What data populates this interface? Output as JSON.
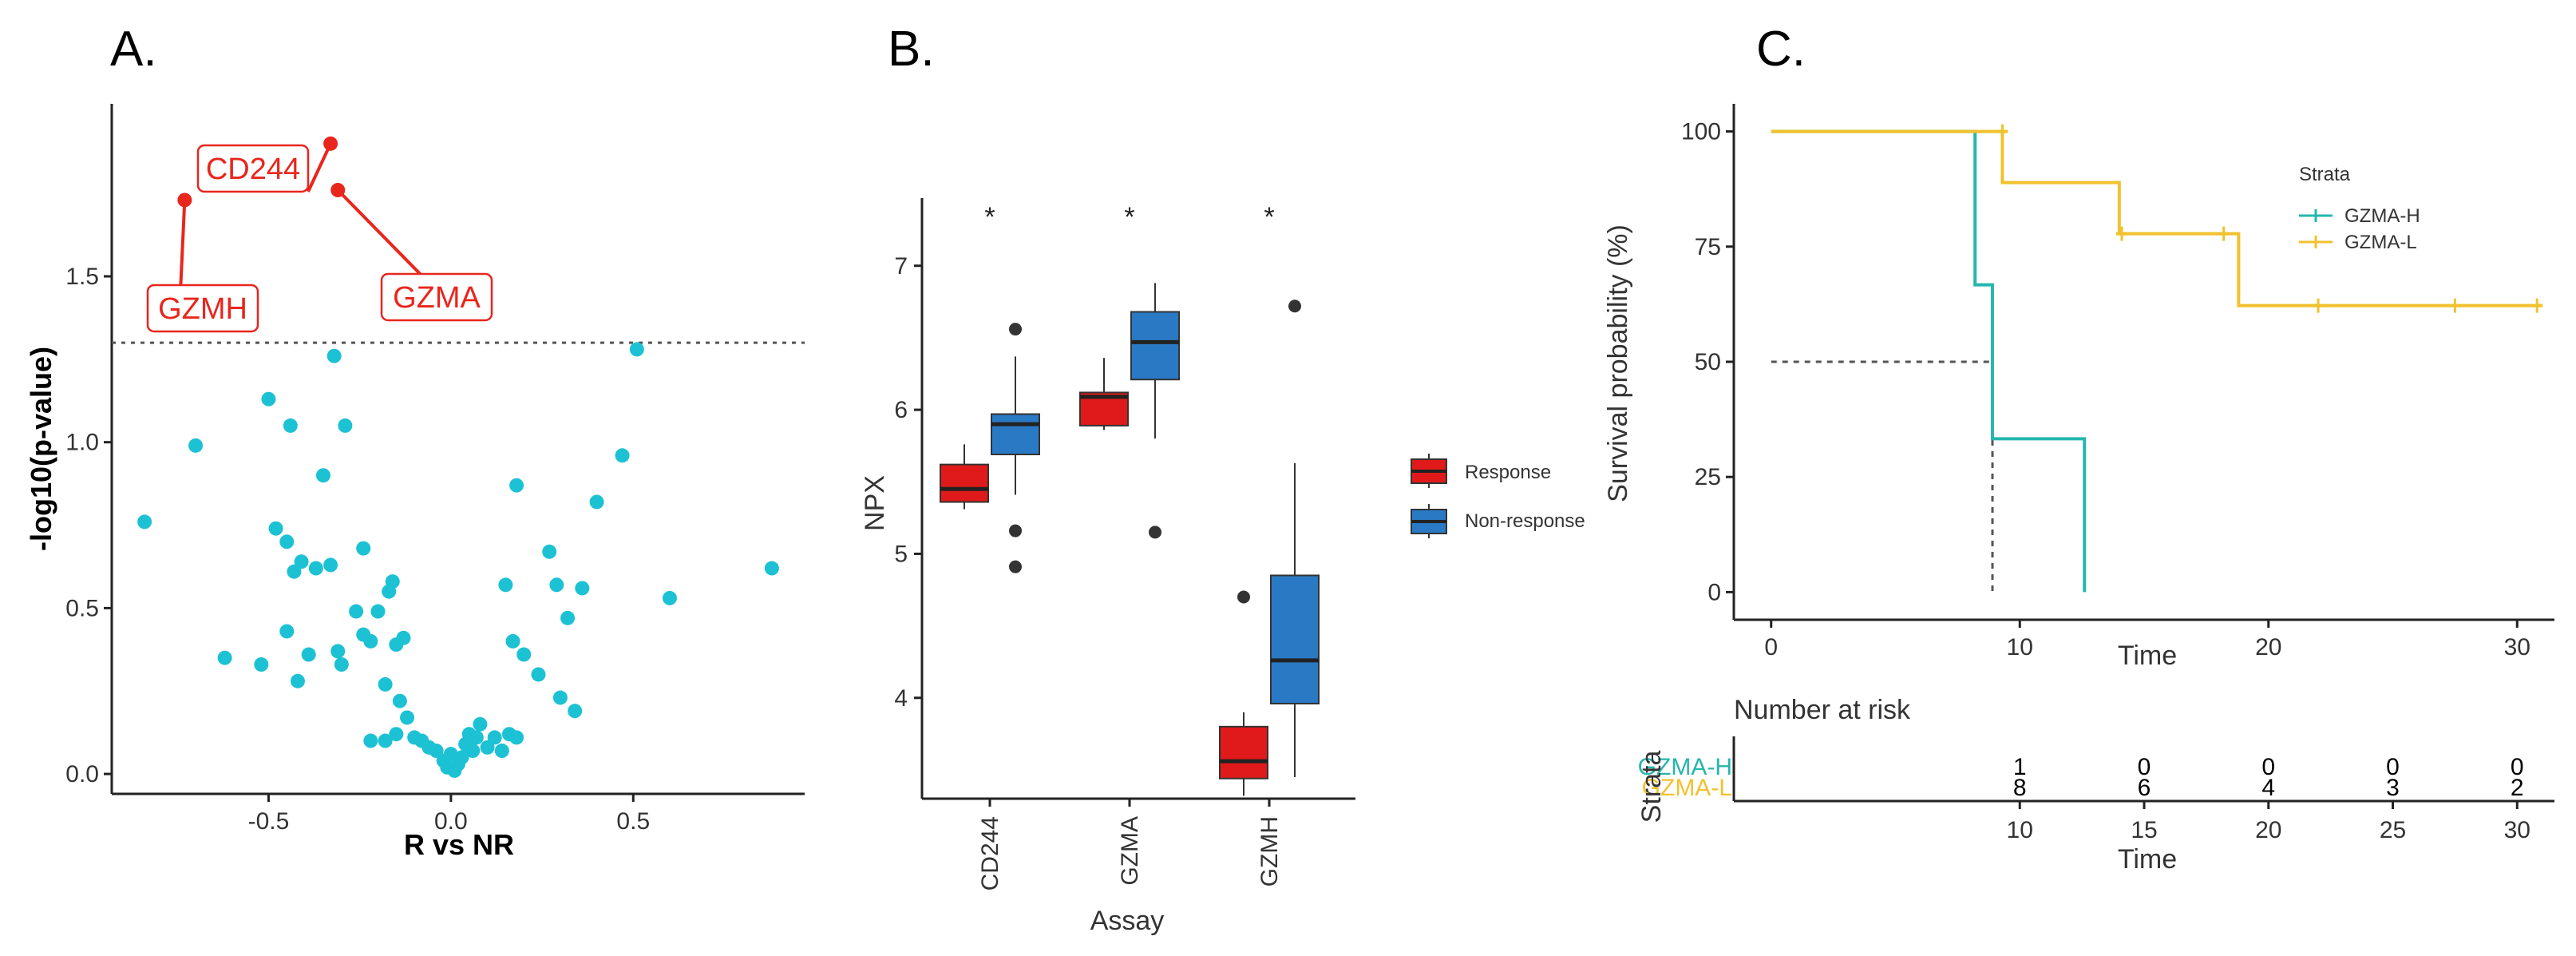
{
  "colors": {
    "dot": "#1cc2d3",
    "highlight": "#e8261d",
    "response": "#e01a1a",
    "non_response": "#2a79c4",
    "gzma_h": "#26b6ae",
    "gzma_l": "#f2c12e",
    "axis": "#222222",
    "grid_ref": "#555555"
  },
  "chart_data": [
    {
      "panel": "A.",
      "type": "scatter",
      "title": "",
      "xlabel": "R vs NR",
      "ylabel": "-log10(p-value)",
      "xlim": [
        -0.93,
        0.97
      ],
      "ylim": [
        -0.06,
        2.02
      ],
      "xticks": [
        -0.5,
        0.0,
        0.5
      ],
      "xtick_labels": [
        "-0.5",
        "0.0",
        "0.5"
      ],
      "yticks": [
        0.0,
        0.5,
        1.0,
        1.5
      ],
      "ytick_labels": [
        "0.0",
        "0.5",
        "1.0",
        "1.5"
      ],
      "threshold": 1.3,
      "labeled_points": [
        {
          "label": "CD244",
          "x": -0.33,
          "y": 1.9
        },
        {
          "label": "GZMA",
          "x": -0.31,
          "y": 1.76
        },
        {
          "label": "GZMH",
          "x": -0.73,
          "y": 1.73
        }
      ],
      "points": [
        [
          -0.84,
          0.76
        ],
        [
          -0.7,
          0.99
        ],
        [
          -0.62,
          0.35
        ],
        [
          -0.52,
          0.33
        ],
        [
          -0.5,
          1.13
        ],
        [
          -0.48,
          0.74
        ],
        [
          -0.45,
          0.7
        ],
        [
          -0.44,
          1.05
        ],
        [
          -0.43,
          0.61
        ],
        [
          -0.42,
          0.28
        ],
        [
          -0.41,
          0.64
        ],
        [
          -0.39,
          0.36
        ],
        [
          -0.37,
          0.62
        ],
        [
          -0.35,
          0.9
        ],
        [
          -0.33,
          0.63
        ],
        [
          -0.32,
          1.26
        ],
        [
          -0.31,
          0.37
        ],
        [
          -0.3,
          0.33
        ],
        [
          -0.29,
          1.05
        ],
        [
          -0.26,
          0.49
        ],
        [
          -0.24,
          0.68
        ],
        [
          -0.24,
          0.42
        ],
        [
          -0.22,
          0.4
        ],
        [
          -0.2,
          0.49
        ],
        [
          -0.17,
          0.55
        ],
        [
          -0.16,
          0.58
        ],
        [
          -0.15,
          0.39
        ],
        [
          -0.18,
          0.27
        ],
        [
          -0.13,
          0.41
        ],
        [
          -0.14,
          0.22
        ],
        [
          -0.12,
          0.17
        ],
        [
          -0.22,
          0.1
        ],
        [
          -0.18,
          0.1
        ],
        [
          -0.15,
          0.12
        ],
        [
          -0.1,
          0.11
        ],
        [
          -0.08,
          0.1
        ],
        [
          -0.06,
          0.08
        ],
        [
          -0.04,
          0.07
        ],
        [
          -0.02,
          0.04
        ],
        [
          -0.01,
          0.02
        ],
        [
          0.0,
          0.06
        ],
        [
          0.01,
          0.01
        ],
        [
          0.02,
          0.03
        ],
        [
          0.03,
          0.05
        ],
        [
          0.04,
          0.09
        ],
        [
          0.05,
          0.12
        ],
        [
          0.06,
          0.07
        ],
        [
          0.07,
          0.11
        ],
        [
          0.08,
          0.15
        ],
        [
          0.1,
          0.08
        ],
        [
          0.12,
          0.11
        ],
        [
          0.14,
          0.07
        ],
        [
          0.16,
          0.12
        ],
        [
          0.18,
          0.11
        ],
        [
          0.15,
          0.57
        ],
        [
          0.17,
          0.4
        ],
        [
          0.18,
          0.87
        ],
        [
          0.2,
          0.36
        ],
        [
          0.24,
          0.3
        ],
        [
          0.27,
          0.67
        ],
        [
          0.29,
          0.57
        ],
        [
          0.3,
          0.23
        ],
        [
          0.32,
          0.47
        ],
        [
          0.34,
          0.19
        ],
        [
          0.36,
          0.56
        ],
        [
          0.4,
          0.82
        ],
        [
          0.47,
          0.96
        ],
        [
          0.51,
          1.28
        ],
        [
          0.6,
          0.53
        ],
        [
          0.88,
          0.62
        ],
        [
          -0.45,
          0.43
        ]
      ]
    },
    {
      "panel": "B.",
      "type": "box",
      "title": "",
      "xlabel": "Assay",
      "ylabel": "NPX",
      "ylim": [
        3.3,
        7.47
      ],
      "yticks": [
        4,
        5,
        6,
        7
      ],
      "ytick_labels": [
        "4",
        "5",
        "6",
        "7"
      ],
      "categories": [
        "CD244",
        "GZMA",
        "GZMH"
      ],
      "significance": [
        "*",
        "*",
        "*"
      ],
      "legend_title": "",
      "series": [
        {
          "name": "Response",
          "boxes": [
            {
              "min": 5.31,
              "q1": 5.36,
              "median": 5.45,
              "q3": 5.62,
              "max": 5.76,
              "outliers": []
            },
            {
              "min": 5.86,
              "q1": 5.89,
              "median": 6.09,
              "q3": 6.12,
              "max": 6.36,
              "outliers": []
            },
            {
              "min": 3.32,
              "q1": 3.44,
              "median": 3.56,
              "q3": 3.8,
              "max": 3.9,
              "outliers": [
                4.7
              ]
            }
          ]
        },
        {
          "name": "Non-response",
          "boxes": [
            {
              "min": 5.41,
              "q1": 5.69,
              "median": 5.9,
              "q3": 5.97,
              "max": 6.37,
              "outliers": [
                6.56,
                5.16,
                4.91
              ]
            },
            {
              "min": 5.8,
              "q1": 6.21,
              "median": 6.47,
              "q3": 6.68,
              "max": 6.88,
              "outliers": [
                5.15
              ]
            },
            {
              "min": 3.45,
              "q1": 3.96,
              "median": 4.26,
              "q3": 4.85,
              "max": 5.63,
              "outliers": [
                6.72
              ]
            }
          ]
        }
      ]
    },
    {
      "panel": "C.",
      "type": "line",
      "subtype": "kaplan-meier step",
      "title": "",
      "xlabel": "Time",
      "ylabel": "Survival probability (%)",
      "xlim": [
        -1.5,
        31.5
      ],
      "ylim": [
        -6,
        106
      ],
      "xticks": [
        0,
        10,
        20,
        30
      ],
      "xtick_labels": [
        "0",
        "10",
        "20",
        "30"
      ],
      "yticks": [
        0,
        25,
        50,
        75,
        100
      ],
      "ytick_labels": [
        "0",
        "25",
        "50",
        "75",
        "100"
      ],
      "legend_title": "Strata",
      "median_line": {
        "y": 50,
        "x": 8.9
      },
      "series": [
        {
          "name": "GZMA-H",
          "steps": [
            [
              0,
              100
            ],
            [
              8.2,
              66.7
            ],
            [
              8.9,
              33.3
            ],
            [
              12.6,
              0
            ]
          ],
          "end_time": 12.6,
          "censored": []
        },
        {
          "name": "GZMA-L",
          "steps": [
            [
              0,
              100
            ],
            [
              9.3,
              88.9
            ],
            [
              14.0,
              77.8
            ],
            [
              18.8,
              62.2
            ]
          ],
          "end_time": 31.0,
          "censored": [
            [
              9.3,
              100
            ],
            [
              14.1,
              77.8
            ],
            [
              18.2,
              77.8
            ],
            [
              22.0,
              62.2
            ],
            [
              27.5,
              62.2
            ],
            [
              30.8,
              62.2
            ]
          ]
        }
      ],
      "risk_table": {
        "title": "Number at risk",
        "axis_label": "Strata",
        "xlabel": "Time",
        "times": [
          10,
          15,
          20,
          25,
          30
        ],
        "time_labels": [
          "10",
          "15",
          "20",
          "25",
          "30"
        ],
        "rows": [
          {
            "name": "GZMA-H",
            "counts": [
              "1",
              "0",
              "0",
              "0",
              "0"
            ]
          },
          {
            "name": "GZMA-L",
            "counts": [
              "8",
              "6",
              "4",
              "3",
              "2"
            ]
          }
        ]
      }
    }
  ]
}
